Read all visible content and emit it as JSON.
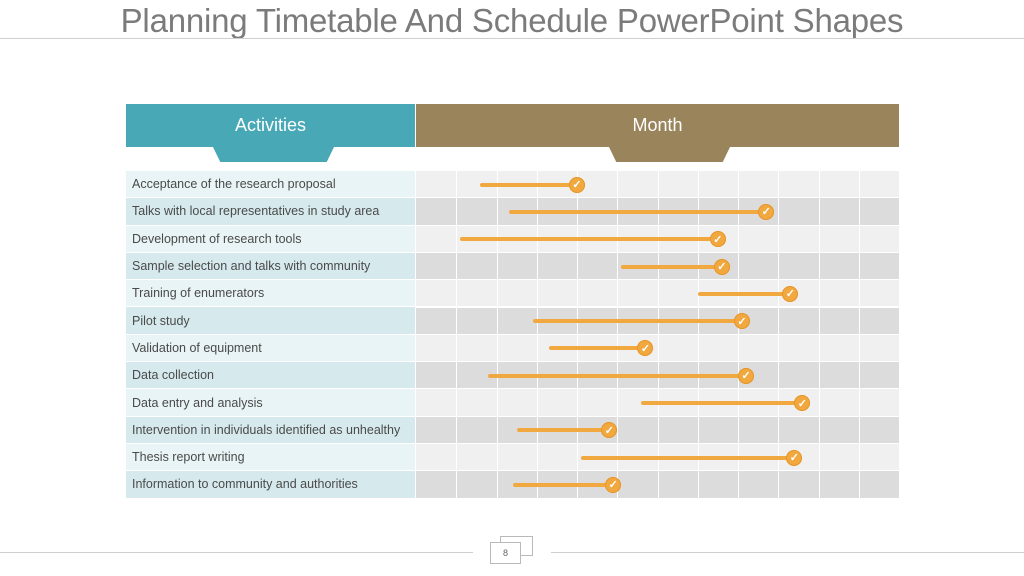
{
  "title": "Planning Timetable And Schedule PowerPoint Shapes",
  "header": {
    "activities_label": "Activities",
    "month_label": "Month"
  },
  "colors": {
    "activities_header": "#49a8b5",
    "month_header": "#9a845c",
    "bar": "#f0a83f",
    "title_text": "#7b7b7b"
  },
  "check_icon": "check-circle-icon",
  "timeline_columns": 12,
  "activities": [
    {
      "label": "Acceptance of the research proposal",
      "start": 1.6,
      "end": 4.0
    },
    {
      "label": "Talks with local representatives in study area",
      "start": 2.3,
      "end": 8.7
    },
    {
      "label": "Development of research tools",
      "start": 1.1,
      "end": 7.5
    },
    {
      "label": "Sample selection and talks with community",
      "start": 5.1,
      "end": 7.6
    },
    {
      "label": "Training of enumerators",
      "start": 7.0,
      "end": 9.3
    },
    {
      "label": "Pilot study",
      "start": 2.9,
      "end": 8.1
    },
    {
      "label": "Validation of equipment",
      "start": 3.3,
      "end": 5.7
    },
    {
      "label": "Data collection",
      "start": 1.8,
      "end": 8.2
    },
    {
      "label": "Data entry and analysis",
      "start": 5.6,
      "end": 9.6
    },
    {
      "label": "Intervention in individuals identified as unhealthy",
      "start": 2.5,
      "end": 4.8
    },
    {
      "label": "Thesis report writing",
      "start": 4.1,
      "end": 9.4
    },
    {
      "label": "Information to community and authorities",
      "start": 2.4,
      "end": 4.9
    }
  ],
  "footer": {
    "page_number": "8"
  }
}
